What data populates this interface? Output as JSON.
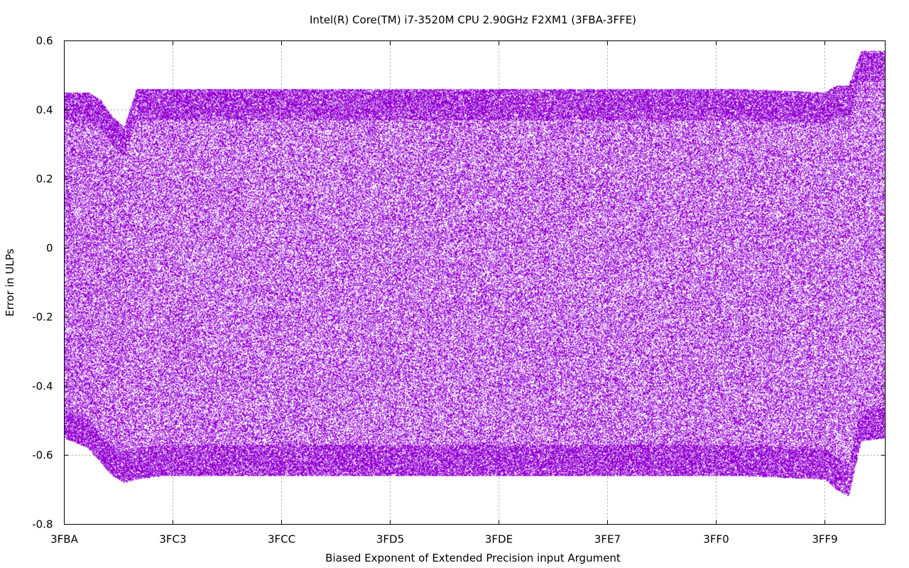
{
  "chart_data": {
    "type": "scatter",
    "title": "Intel(R) Core(TM) i7-3520M CPU  2.90GHz F2XM1 (3FBA-3FFE)",
    "xlabel": "Biased Exponent of Extended Precision input Argument",
    "ylabel": "Error in ULPs",
    "x_axis": {
      "scale": "linear",
      "range_hex": [
        "3FBA",
        "3FFE"
      ],
      "range": [
        16314,
        16382
      ],
      "ticks": [
        {
          "value": 16314,
          "label": "3FBA"
        },
        {
          "value": 16323,
          "label": "3FC3"
        },
        {
          "value": 16332,
          "label": "3FCC"
        },
        {
          "value": 16341,
          "label": "3FD5"
        },
        {
          "value": 16350,
          "label": "3FDE"
        },
        {
          "value": 16359,
          "label": "3FE7"
        },
        {
          "value": 16368,
          "label": "3FF0"
        },
        {
          "value": 16377,
          "label": "3FF9"
        }
      ]
    },
    "y_axis": {
      "range": [
        -0.8,
        0.6
      ],
      "ticks": [
        {
          "value": 0.6,
          "label": "0.6"
        },
        {
          "value": 0.4,
          "label": "0.4"
        },
        {
          "value": 0.2,
          "label": "0.2"
        },
        {
          "value": 0.0,
          "label": "0"
        },
        {
          "value": -0.2,
          "label": "-0.2"
        },
        {
          "value": -0.4,
          "label": "-0.4"
        },
        {
          "value": -0.6,
          "label": "-0.6"
        },
        {
          "value": -0.8,
          "label": "-0.8"
        }
      ]
    },
    "grid": true,
    "legend": "none",
    "point_color": "#9400d3",
    "series": [
      {
        "x_range": [
          16314,
          16382
        ],
        "envelope": [
          {
            "x": 16314,
            "y_min": -0.55,
            "y_max": 0.45
          },
          {
            "x": 16316,
            "y_min": -0.58,
            "y_max": 0.45
          },
          {
            "x": 16317,
            "y_min": -0.62,
            "y_max": 0.43
          },
          {
            "x": 16318,
            "y_min": -0.66,
            "y_max": 0.38
          },
          {
            "x": 16319,
            "y_min": -0.68,
            "y_max": 0.35
          },
          {
            "x": 16320,
            "y_min": -0.67,
            "y_max": 0.46
          },
          {
            "x": 16322,
            "y_min": -0.66,
            "y_max": 0.46
          },
          {
            "x": 16330,
            "y_min": -0.66,
            "y_max": 0.46
          },
          {
            "x": 16340,
            "y_min": -0.66,
            "y_max": 0.46
          },
          {
            "x": 16350,
            "y_min": -0.66,
            "y_max": 0.46
          },
          {
            "x": 16360,
            "y_min": -0.66,
            "y_max": 0.46
          },
          {
            "x": 16370,
            "y_min": -0.66,
            "y_max": 0.46
          },
          {
            "x": 16377,
            "y_min": -0.67,
            "y_max": 0.45
          },
          {
            "x": 16378,
            "y_min": -0.7,
            "y_max": 0.47
          },
          {
            "x": 16379,
            "y_min": -0.72,
            "y_max": 0.47
          },
          {
            "x": 16380,
            "y_min": -0.56,
            "y_max": 0.57
          },
          {
            "x": 16382,
            "y_min": -0.55,
            "y_max": 0.57
          }
        ]
      }
    ]
  }
}
